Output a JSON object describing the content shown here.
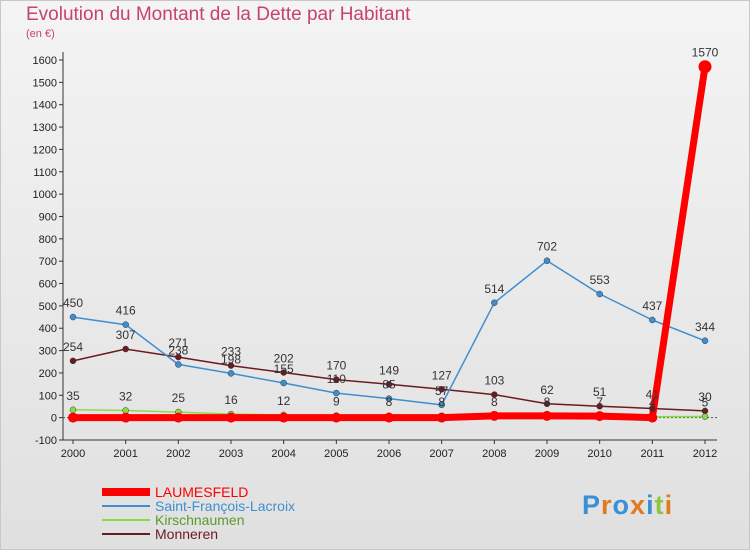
{
  "chart_data": {
    "type": "line",
    "title": "Evolution du Montant de la Dette par Habitant",
    "subtitle": "(en €)",
    "x": [
      "2000",
      "2001",
      "2002",
      "2003",
      "2004",
      "2005",
      "2006",
      "2007",
      "2008",
      "2009",
      "2010",
      "2011",
      "2012"
    ],
    "ylim": [
      -100,
      1600
    ],
    "yticks": [
      -100,
      0,
      100,
      200,
      300,
      400,
      500,
      600,
      700,
      800,
      900,
      1000,
      1100,
      1200,
      1300,
      1400,
      1500,
      1600
    ],
    "grid": false,
    "legend_position": "bottom-left",
    "series": [
      {
        "name": "LAUMESFELD",
        "color": "#ff0000",
        "values": [
          0,
          0,
          0,
          0,
          0,
          0,
          0,
          0,
          8,
          8,
          7,
          0,
          1570
        ],
        "labels": [
          "",
          "",
          "",
          "",
          "",
          "",
          "",
          "",
          "8",
          "8",
          "7",
          "",
          "1570"
        ]
      },
      {
        "name": "Saint-François-Lacroix",
        "color": "#3f8fd0",
        "values": [
          450,
          416,
          238,
          198,
          155,
          110,
          85,
          57,
          514,
          702,
          553,
          437,
          344
        ],
        "labels": [
          "450",
          "416",
          "238",
          "198",
          "155",
          "110",
          "85",
          "57",
          "514",
          "702",
          "553",
          "437",
          "344"
        ]
      },
      {
        "name": "Kirschnaumen",
        "color": "#88dd44",
        "values": [
          35,
          32,
          25,
          16,
          12,
          9,
          8,
          8,
          8,
          8,
          7,
          4,
          5
        ],
        "labels": [
          "35",
          "32",
          "25",
          "16",
          "12",
          "9",
          "8",
          "8",
          "",
          "",
          "",
          "4",
          "5"
        ]
      },
      {
        "name": "Monneren",
        "color": "#6b1a22",
        "values": [
          254,
          307,
          271,
          233,
          202,
          170,
          149,
          127,
          103,
          62,
          51,
          41,
          30
        ],
        "labels": [
          "254",
          "307",
          "271",
          "233",
          "202",
          "170",
          "149",
          "127",
          "103",
          "62",
          "51",
          "41",
          "30"
        ]
      }
    ]
  },
  "logo_text": "Proxiti"
}
